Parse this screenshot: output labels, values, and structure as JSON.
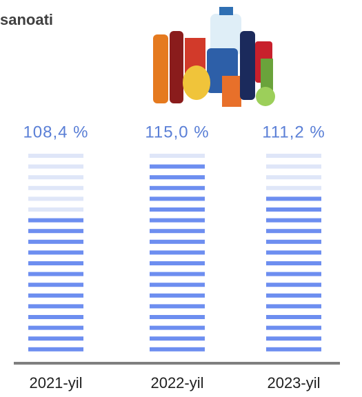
{
  "chart_data": {
    "type": "bar",
    "title": "sanoati",
    "categories": [
      "2021-yil",
      "2022-yil",
      "2023-yil"
    ],
    "values": [
      108.4,
      115.0,
      111.2
    ],
    "value_labels": [
      "108,4 %",
      "115,0 %",
      "111,2 %"
    ],
    "color": "#6d8ef0",
    "empty_color": "#dfe6f8",
    "label_color": "#5a7fd6",
    "ylim": [
      91,
      116
    ]
  }
}
